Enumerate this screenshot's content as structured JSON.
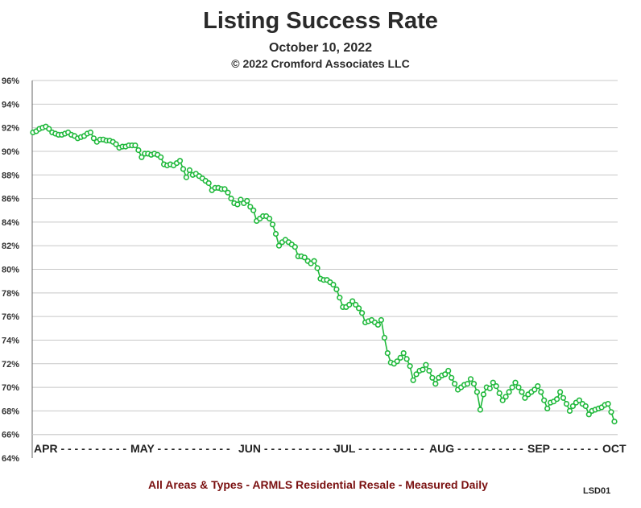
{
  "chart_data": {
    "type": "line",
    "title": "Listing Success Rate",
    "subtitle": "October 10, 2022",
    "copyright": "© 2022 Cromford Associates LLC",
    "footer": "All Areas & Types - ARMLS Residential Resale - Measured Daily",
    "code": "LSD01",
    "ylim": [
      64,
      96
    ],
    "y_ticks": [
      "96%",
      "94%",
      "92%",
      "90%",
      "88%",
      "86%",
      "84%",
      "82%",
      "80%",
      "78%",
      "76%",
      "74%",
      "72%",
      "70%",
      "68%",
      "66%",
      "64%"
    ],
    "x_labels": [
      "APR - - - - - - - - - -",
      "MAY - - - - - - - - - - -",
      "JUN - - - - - - - - - - -",
      "JUL - - - - - - - - - -",
      "AUG - - - - - - - - - -",
      "SEP - - - - - - -",
      "OCT"
    ],
    "grid": true,
    "colors": {
      "line": "#1eb83a",
      "marker_fill": "#ffffff",
      "footer": "#7a1010",
      "grid": "#c8c8c8"
    },
    "series": [
      {
        "values": [
          91.6,
          91.7,
          91.9,
          92.0,
          92.1,
          91.9,
          91.6,
          91.5,
          91.4,
          91.4,
          91.5,
          91.6,
          91.4,
          91.3,
          91.1,
          91.2,
          91.3,
          91.5,
          91.6,
          91.1,
          90.8,
          91.0,
          91.0,
          90.9,
          90.9,
          90.8,
          90.6,
          90.3,
          90.4,
          90.4,
          90.5,
          90.5,
          90.5,
          90.1,
          89.5,
          89.8,
          89.8,
          89.7,
          89.8,
          89.7,
          89.5,
          88.9,
          88.8,
          88.9,
          88.8,
          89.0,
          89.2,
          88.5,
          87.8,
          88.4,
          88.0,
          88.1,
          87.9,
          87.7,
          87.5,
          87.3,
          86.7,
          86.9,
          86.9,
          86.8,
          86.8,
          86.5,
          86.0,
          85.6,
          85.5,
          85.9,
          85.6,
          85.8,
          85.3,
          85.0,
          84.1,
          84.3,
          84.5,
          84.5,
          84.3,
          83.8,
          83.0,
          82.0,
          82.3,
          82.5,
          82.3,
          82.1,
          81.9,
          81.1,
          81.1,
          81.0,
          80.7,
          80.5,
          80.7,
          80.1,
          79.2,
          79.1,
          79.1,
          78.9,
          78.7,
          78.3,
          77.6,
          76.8,
          76.8,
          77.0,
          77.3,
          77.0,
          76.7,
          76.3,
          75.5,
          75.6,
          75.7,
          75.5,
          75.3,
          75.7,
          74.2,
          72.9,
          72.1,
          72.0,
          72.2,
          72.5,
          72.9,
          72.4,
          71.8,
          70.6,
          71.1,
          71.4,
          71.5,
          71.9,
          71.4,
          70.8,
          70.3,
          70.8,
          71.0,
          71.1,
          71.4,
          70.8,
          70.3,
          69.8,
          70.0,
          70.2,
          70.3,
          70.7,
          70.3,
          69.6,
          68.1,
          69.4,
          70.0,
          69.9,
          70.4,
          70.1,
          69.5,
          68.9,
          69.2,
          69.6,
          70.0,
          70.4,
          70.0,
          69.6,
          69.1,
          69.4,
          69.6,
          69.8,
          70.1,
          69.6,
          68.9,
          68.2,
          68.7,
          68.8,
          69.0,
          69.6,
          69.1,
          68.6,
          68.0,
          68.4,
          68.7,
          68.9,
          68.6,
          68.4,
          67.7,
          68.0,
          68.1,
          68.2,
          68.3,
          68.5,
          68.6,
          67.9,
          67.1
        ]
      }
    ]
  }
}
